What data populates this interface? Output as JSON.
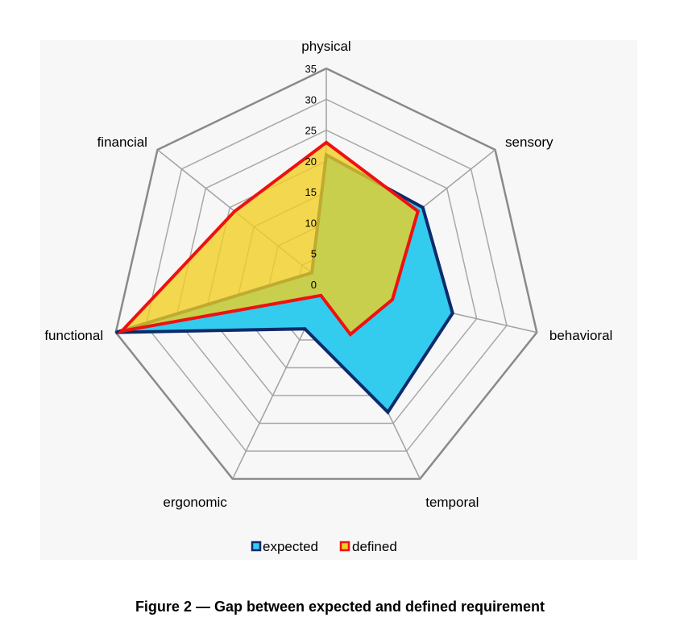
{
  "caption": "Figure 2 — Gap between expected and defined requirement",
  "chart_data": {
    "type": "radar",
    "title": "",
    "categories": [
      "physical",
      "sensory",
      "behavioral",
      "temporal",
      "ergonomic",
      "functional",
      "financial"
    ],
    "radial_ticks": [
      "0",
      "5",
      "10",
      "15",
      "20",
      "25",
      "30",
      "35"
    ],
    "rlim": [
      0,
      35
    ],
    "grid": true,
    "legend_position": "bottom",
    "series": [
      {
        "name": "expected",
        "values": [
          21,
          20,
          21,
          23,
          8,
          35,
          3
        ],
        "fill": "#33ccee",
        "stroke": "#0d2a6b"
      },
      {
        "name": "defined",
        "values": [
          23,
          19,
          11,
          9,
          2,
          34,
          19
        ],
        "fill": "#f2d020",
        "stroke": "#ee1111"
      }
    ]
  }
}
